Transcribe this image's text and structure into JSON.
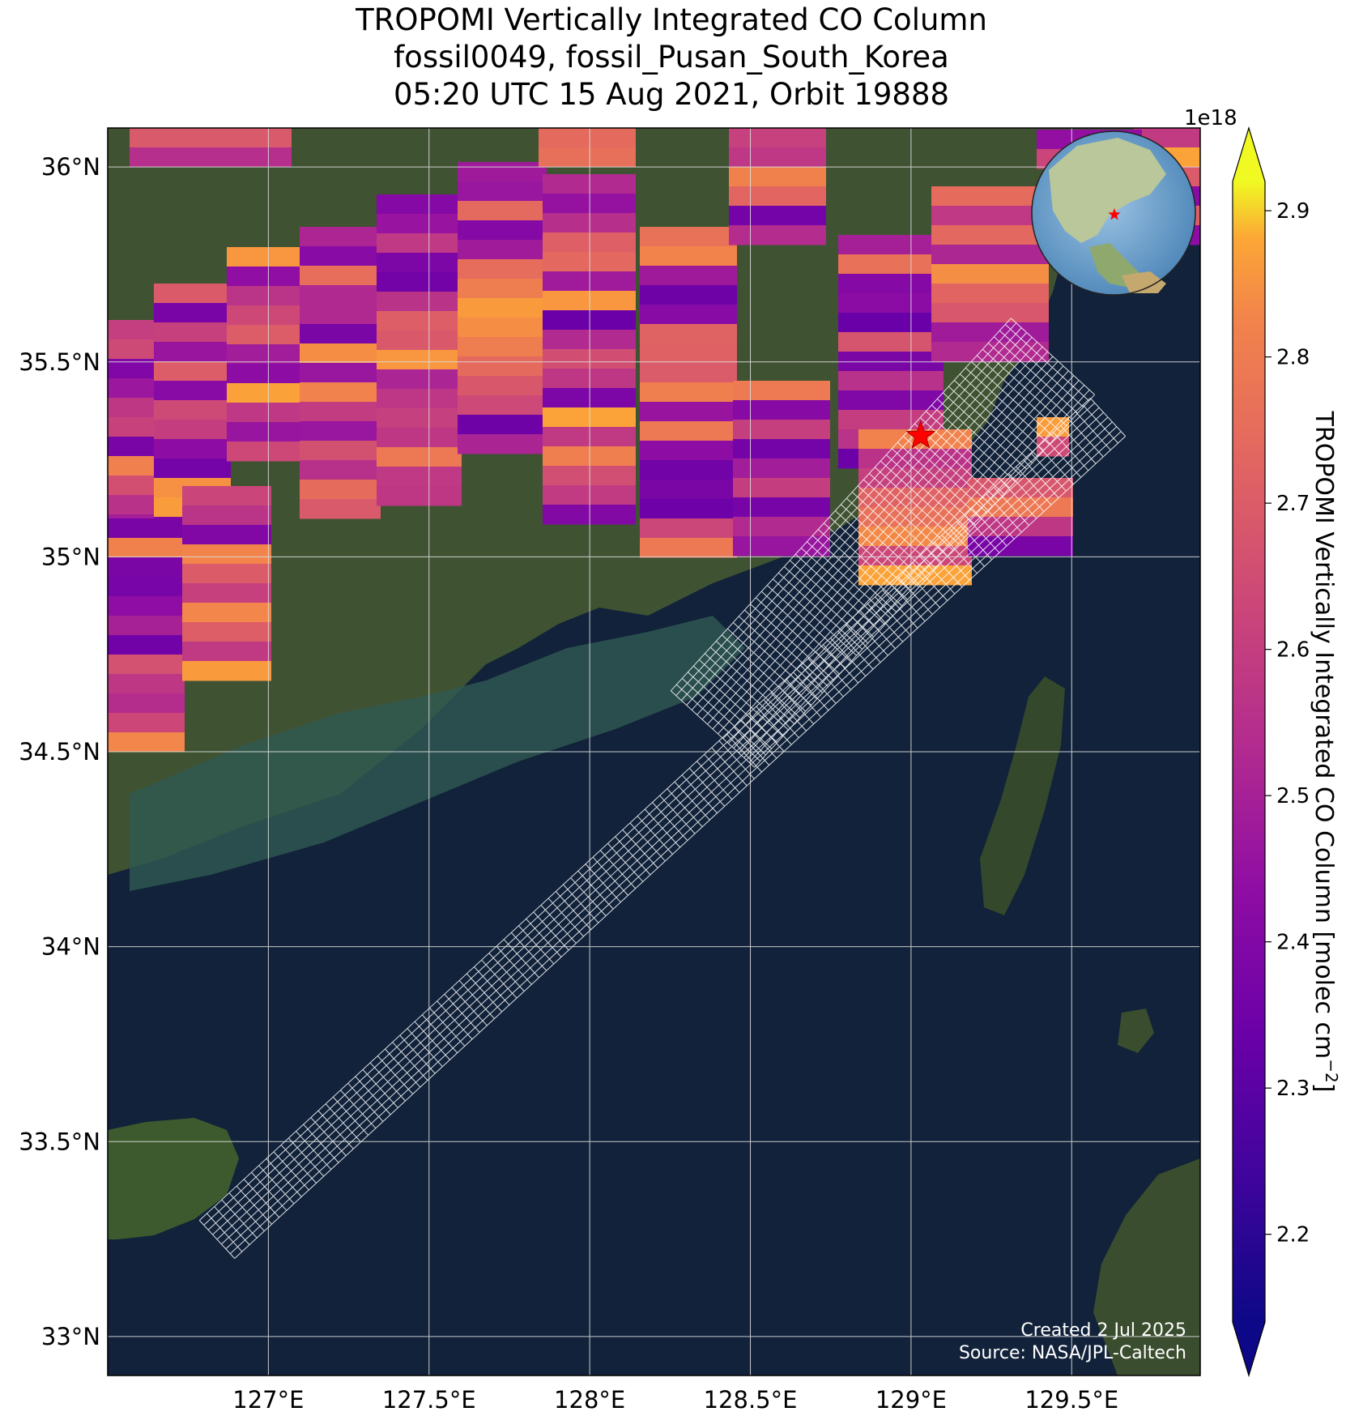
{
  "title": {
    "line1": "TROPOMI Vertically Integrated CO Column",
    "line2": "fossil0049, fossil_Pusan_South_Korea",
    "line3": "05:20 UTC 15 Aug 2021, Orbit 19888"
  },
  "axes": {
    "lon_ticks": [
      "127°E",
      "127.5°E",
      "128°E",
      "128.5°E",
      "129°E",
      "129.5°E"
    ],
    "lat_ticks": [
      "36°N",
      "35.5°N",
      "35°N",
      "34.5°N",
      "34°N",
      "33.5°N",
      "33°N"
    ],
    "lon_range": [
      126.5,
      129.9
    ],
    "lat_range": [
      32.9,
      36.1
    ]
  },
  "colorbar": {
    "label": "TROPOMI Vertically Integrated CO Column [molec cm",
    "label_exp": "−2",
    "label_end": "]",
    "offset_text": "1e18",
    "ticks": [
      "2.9",
      "2.8",
      "2.7",
      "2.6",
      "2.5",
      "2.4",
      "2.3",
      "2.2"
    ],
    "range": [
      2.14,
      2.92
    ],
    "colormap": "plasma"
  },
  "target": {
    "name": "Pusan",
    "lon": 129.03,
    "lat": 35.31,
    "marker_color": "#ff0000"
  },
  "credits": {
    "created": "Created 2 Jul 2025",
    "source": "Source: NASA/JPL-Caltech"
  },
  "colors": {
    "ocean": "#11223a",
    "land": "#3d4f30",
    "grid": "#dddddd",
    "swath_outline": "#ffffff"
  }
}
